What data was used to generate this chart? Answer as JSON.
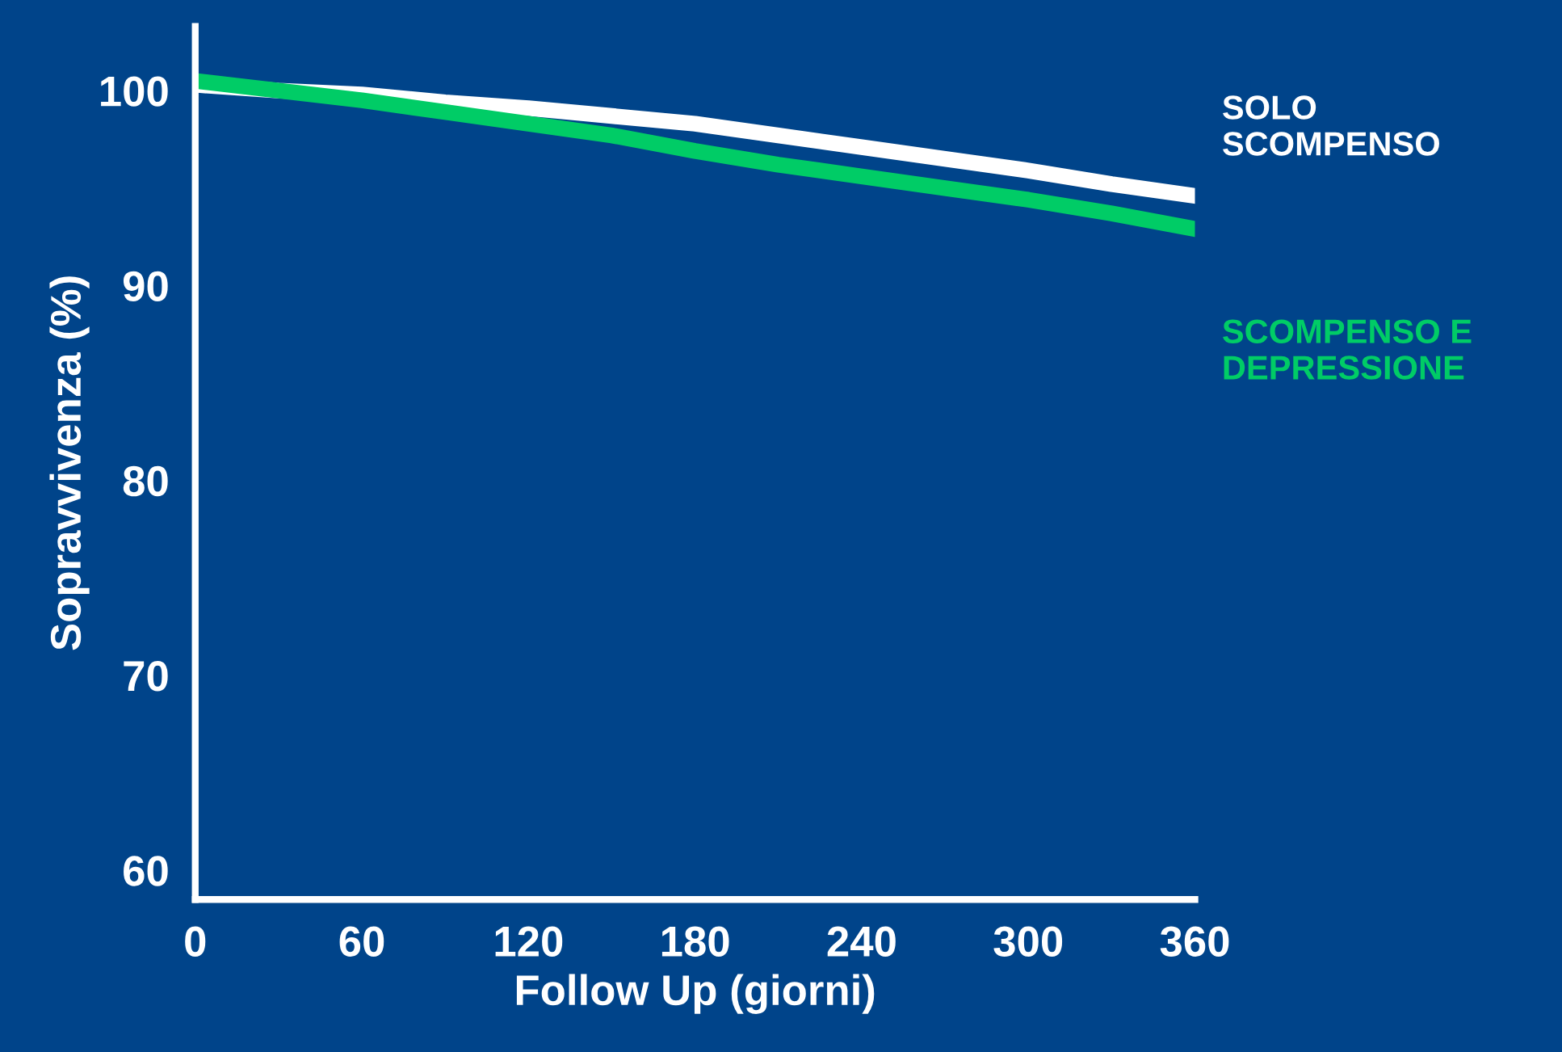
{
  "chart_data": {
    "type": "line",
    "xlabel": "Follow Up (giorni)",
    "ylabel": "Sopravvivenza (%)",
    "xlim": [
      0,
      360
    ],
    "ylim": [
      58.5,
      103.3
    ],
    "xticks": [
      0,
      60,
      120,
      180,
      240,
      300,
      360
    ],
    "yticks": [
      60,
      70,
      80,
      90,
      100
    ],
    "grid": false,
    "legend": false,
    "series": [
      {
        "name": "SOLO\nSCOMPENSO",
        "color": "#ffffff",
        "x": [
          0,
          30,
          60,
          90,
          120,
          150,
          180,
          210,
          240,
          270,
          300,
          330,
          360
        ],
        "values": [
          100.3,
          100.0,
          99.8,
          99.4,
          99.1,
          98.7,
          98.3,
          97.7,
          97.1,
          96.5,
          95.9,
          95.2,
          94.6
        ]
      },
      {
        "name": "SCOMPENSO E\nDEPRESSIONE",
        "color": "#00cc66",
        "x": [
          0,
          30,
          60,
          90,
          120,
          150,
          180,
          210,
          240,
          270,
          300,
          330,
          360
        ],
        "values": [
          100.5,
          100.0,
          99.5,
          98.9,
          98.3,
          97.7,
          96.9,
          96.2,
          95.6,
          95.0,
          94.4,
          93.7,
          92.9
        ]
      }
    ]
  }
}
